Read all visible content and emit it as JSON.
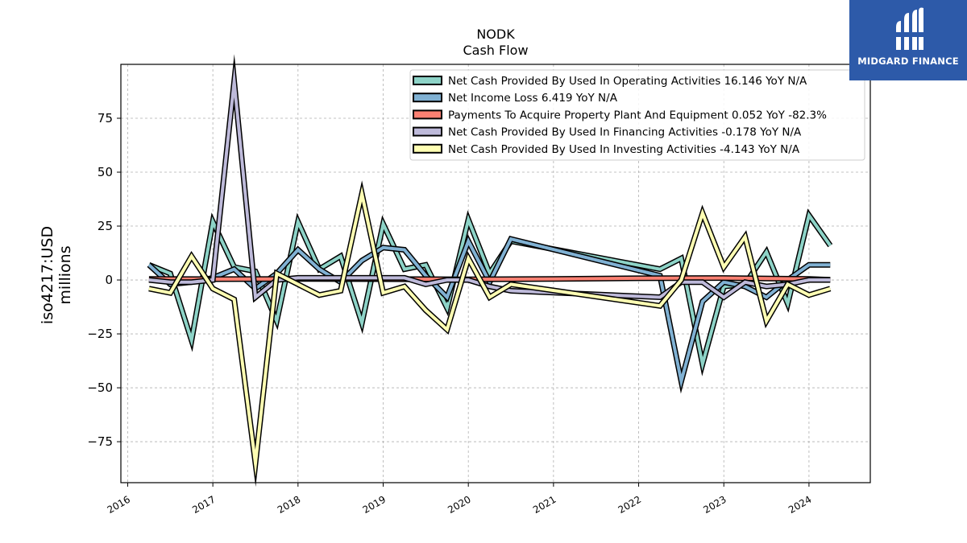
{
  "header": {
    "ticker": "NODK",
    "subtitle": "Cash Flow"
  },
  "brand": {
    "name": "MIDGARD FINANCE",
    "logo_icon": "midgard-logo-icon",
    "color": "#2d5aa9"
  },
  "chart_data": {
    "type": "line",
    "title": "NODK",
    "subtitle": "Cash Flow",
    "ylabel_line1": "iso4217:USD",
    "ylabel_line2": "millions",
    "xlabel": "",
    "x_ticks": [
      "2016",
      "2017",
      "2018",
      "2019",
      "2020",
      "2021",
      "2022",
      "2023",
      "2024"
    ],
    "y_ticks": [
      -75,
      -50,
      -25,
      0,
      25,
      50,
      75
    ],
    "xlim": [
      2015.92,
      2024.72
    ],
    "ylim": [
      -94,
      100
    ],
    "grid": true,
    "legend_position": "top-right",
    "series": [
      {
        "name": "Net Cash Provided By Used In Operating Activities",
        "legend_label": "Net Cash Provided By Used In Operating Activities  16.146 YoY N/A",
        "color": "#8dd3c7",
        "x": [
          2016.25,
          2016.5,
          2016.75,
          2017.0,
          2017.25,
          2017.5,
          2017.75,
          2018.0,
          2018.25,
          2018.5,
          2018.75,
          2019.0,
          2019.25,
          2019.5,
          2019.75,
          2020.0,
          2020.25,
          2020.5,
          2022.25,
          2022.5,
          2022.75,
          2023.0,
          2023.25,
          2023.5,
          2023.75,
          2024.0,
          2024.25
        ],
        "y": [
          7,
          3,
          -28,
          27,
          6,
          4,
          -19,
          27,
          5,
          11,
          -20,
          26,
          5,
          7,
          -13,
          28,
          3,
          18,
          5,
          10,
          -39,
          -3,
          -2,
          13,
          -11,
          30,
          16
        ]
      },
      {
        "name": "Net Income Loss",
        "legend_label": "Net Income Loss  6.419 YoY N/A",
        "color": "#80b1d3",
        "x": [
          2016.25,
          2016.5,
          2016.75,
          2017.0,
          2017.25,
          2017.5,
          2017.75,
          2018.0,
          2018.25,
          2018.5,
          2018.75,
          2019.0,
          2019.25,
          2019.5,
          2019.75,
          2020.0,
          2020.25,
          2020.5,
          2022.25,
          2022.5,
          2022.75,
          2023.0,
          2023.25,
          2023.5,
          2023.75,
          2024.0,
          2024.25
        ],
        "y": [
          7,
          -2,
          -1,
          1,
          5,
          -4,
          3,
          14,
          5,
          -1,
          9,
          15,
          14,
          2,
          -8,
          18,
          -1,
          19,
          2,
          -47,
          -10,
          -1,
          -3,
          -8,
          0,
          7,
          7
        ]
      },
      {
        "name": "Payments To Acquire Property Plant And Equipment",
        "legend_label": "Payments To Acquire Property Plant And Equipment  0.052 YoY -82.3%",
        "color": "#fb8072",
        "x": [
          2016.25,
          2017.0,
          2018.0,
          2019.0,
          2020.0,
          2021.0,
          2022.0,
          2023.0,
          2024.0,
          2024.25
        ],
        "y": [
          0.5,
          0.4,
          0.5,
          0.4,
          0.3,
          0.5,
          0.8,
          0.9,
          0.5,
          0.1
        ]
      },
      {
        "name": "Net Cash Provided By Used In Financing Activities",
        "legend_label": "Net Cash Provided By Used In Financing Activities  -0.178 YoY N/A",
        "color": "#bebada",
        "x": [
          2016.25,
          2016.5,
          2016.75,
          2017.0,
          2017.25,
          2017.5,
          2017.75,
          2018.0,
          2018.25,
          2018.5,
          2018.75,
          2019.0,
          2019.25,
          2019.5,
          2019.75,
          2020.0,
          2020.25,
          2020.5,
          2022.25,
          2022.5,
          2022.75,
          2023.0,
          2023.25,
          2023.5,
          2023.75,
          2024.0,
          2024.25
        ],
        "y": [
          0,
          -1,
          -1,
          0,
          92,
          -8,
          0,
          1,
          1,
          1,
          1,
          1,
          1,
          -2,
          0,
          0,
          -3,
          -5,
          -8,
          -1,
          -1,
          -8,
          -1,
          -3,
          -2,
          0,
          0
        ]
      },
      {
        "name": "Net Cash Provided By Used In Investing Activities",
        "legend_label": "Net Cash Provided By Used In Investing Activities  -4.143 YoY N/A",
        "color": "#ffffb3",
        "x": [
          2016.25,
          2016.5,
          2016.75,
          2017.0,
          2017.25,
          2017.5,
          2017.75,
          2018.0,
          2018.25,
          2018.5,
          2018.75,
          2019.0,
          2019.25,
          2019.5,
          2019.75,
          2020.0,
          2020.25,
          2020.5,
          2022.25,
          2022.5,
          2022.75,
          2023.0,
          2023.25,
          2023.5,
          2023.75,
          2024.0,
          2024.25
        ],
        "y": [
          -4,
          -6,
          11,
          -4,
          -9,
          -85,
          3,
          -2,
          -7,
          -5,
          40,
          -6,
          -3,
          -14,
          -23,
          10,
          -8,
          -2,
          -12,
          0,
          31,
          6,
          20,
          -19,
          -2,
          -7,
          -4
        ]
      }
    ]
  }
}
